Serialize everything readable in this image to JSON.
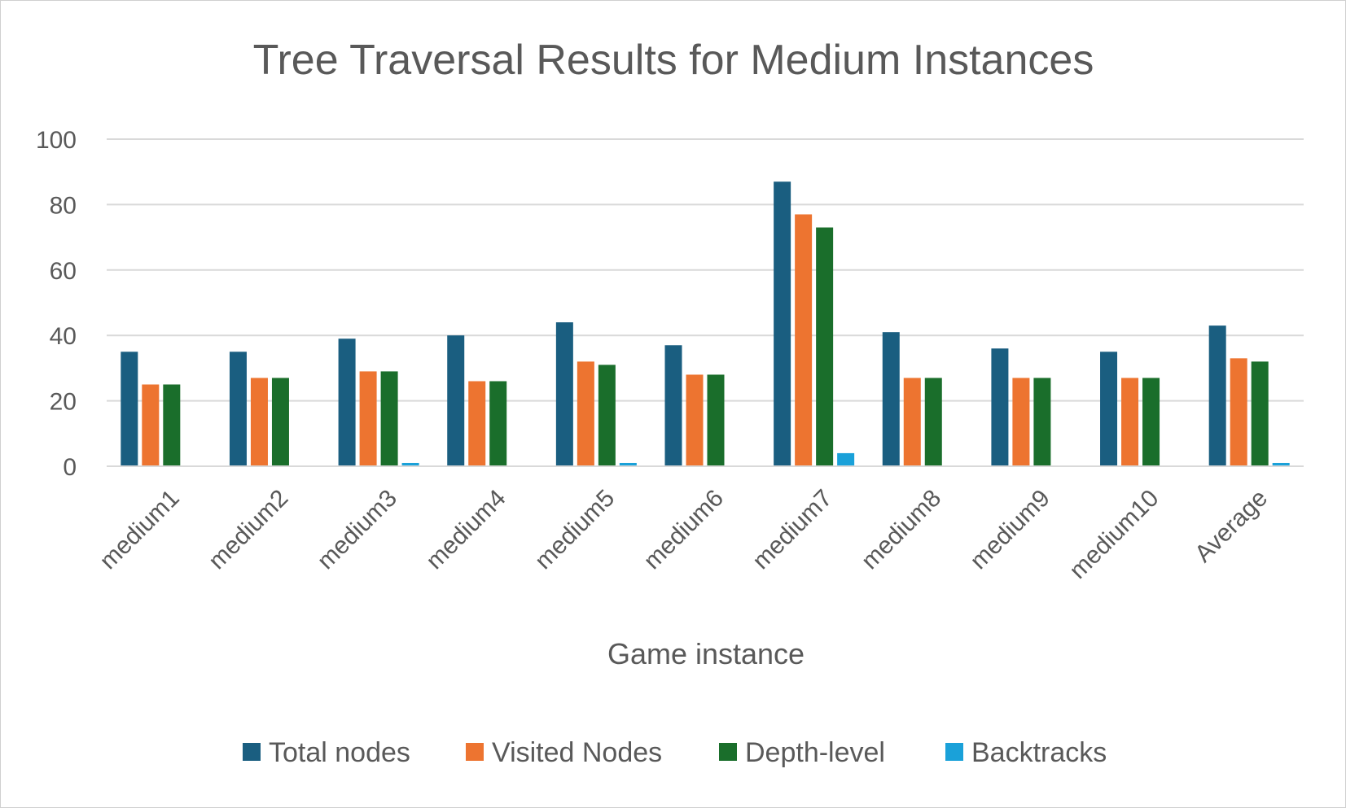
{
  "chart_data": {
    "type": "bar",
    "title": "Tree Traversal Results for Medium Instances",
    "xlabel": "Game instance",
    "ylabel": "",
    "ylim": [
      0,
      100
    ],
    "yticks": [
      0,
      20,
      40,
      60,
      80,
      100
    ],
    "grid": true,
    "legend_position": "bottom",
    "categories": [
      "medium1",
      "medium2",
      "medium3",
      "medium4",
      "medium5",
      "medium6",
      "medium7",
      "medium8",
      "medium9",
      "medium10",
      "Average"
    ],
    "series": [
      {
        "name": "Total nodes",
        "color": "#1a5e80",
        "values": [
          35,
          35,
          39,
          40,
          44,
          37,
          87,
          41,
          36,
          35,
          43
        ]
      },
      {
        "name": "Visited Nodes",
        "color": "#ed7430",
        "values": [
          25,
          27,
          29,
          26,
          32,
          28,
          77,
          27,
          27,
          27,
          33
        ]
      },
      {
        "name": "Depth-level",
        "color": "#1a6e2b",
        "values": [
          25,
          27,
          29,
          26,
          31,
          28,
          73,
          27,
          27,
          27,
          32
        ]
      },
      {
        "name": "Backtracks",
        "color": "#1aa1d9",
        "values": [
          0,
          0,
          1,
          0,
          1,
          0,
          4,
          0,
          0,
          0,
          1
        ]
      }
    ]
  }
}
